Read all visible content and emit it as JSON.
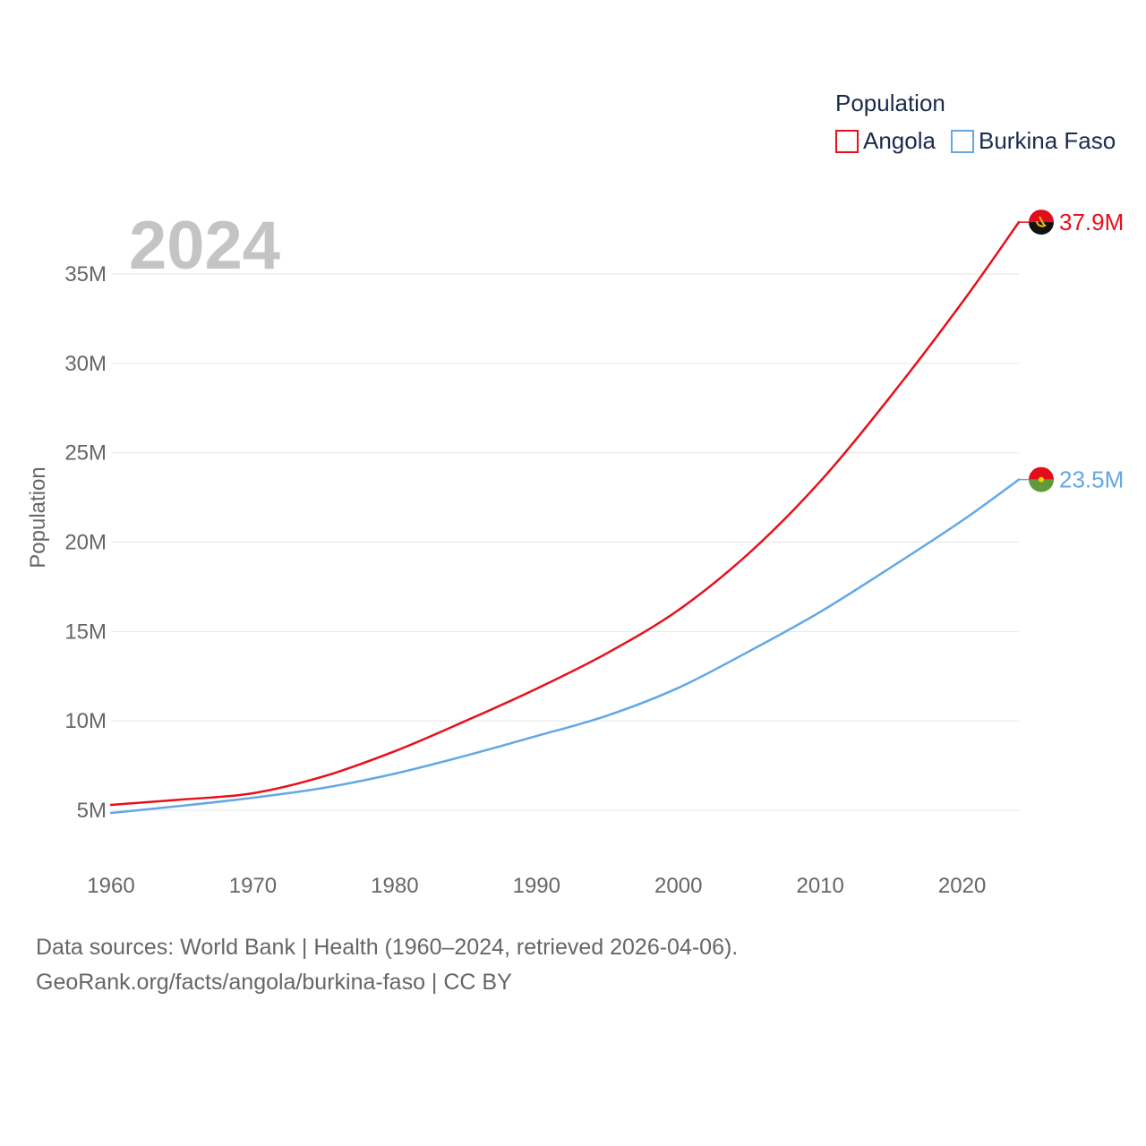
{
  "chart_data": {
    "type": "line",
    "year_label": "2024",
    "ylabel": "Population",
    "xlabel": "",
    "xlim": [
      1960,
      2024
    ],
    "ylim": [
      2000000,
      40000000
    ],
    "x_ticks": [
      1960,
      1970,
      1980,
      1990,
      2000,
      2010,
      2020
    ],
    "y_ticks": [
      {
        "value": 5000000,
        "label": "5M"
      },
      {
        "value": 10000000,
        "label": "10M"
      },
      {
        "value": 15000000,
        "label": "15M"
      },
      {
        "value": 20000000,
        "label": "20M"
      },
      {
        "value": 25000000,
        "label": "25M"
      },
      {
        "value": 30000000,
        "label": "30M"
      },
      {
        "value": 35000000,
        "label": "35M"
      }
    ],
    "legend": {
      "title": "Population",
      "position": "top-right"
    },
    "x": [
      1960,
      1965,
      1970,
      1975,
      1980,
      1985,
      1990,
      1995,
      2000,
      2005,
      2010,
      2015,
      2020,
      2024
    ],
    "series": [
      {
        "name": "Angola",
        "color": "#e8101a",
        "flag": "angola-flag-icon",
        "end_label": "37.9M",
        "values": [
          5300000,
          5600000,
          5950000,
          6900000,
          8300000,
          10000000,
          11800000,
          13800000,
          16200000,
          19400000,
          23400000,
          28200000,
          33400000,
          37900000
        ]
      },
      {
        "name": "Burkina Faso",
        "color": "#62a8e5",
        "flag": "burkina-faso-flag-icon",
        "end_label": "23.5M",
        "values": [
          4850000,
          5250000,
          5700000,
          6250000,
          7050000,
          8050000,
          9150000,
          10300000,
          11850000,
          13900000,
          16100000,
          18600000,
          21200000,
          23500000
        ]
      }
    ]
  },
  "source": {
    "line1": "Data sources: World Bank | Health (1960–2024, retrieved 2026-04-06).",
    "line2": "GeoRank.org/facts/angola/burkina-faso | CC BY"
  }
}
